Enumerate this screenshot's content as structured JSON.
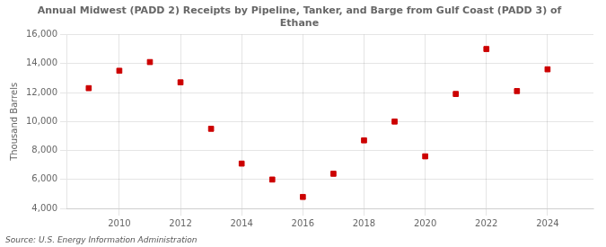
{
  "chart_data": {
    "type": "scatter",
    "title": "Annual Midwest (PADD 2) Receipts by Pipeline, Tanker, and Barge from Gulf Coast (PADD 3) of\nEthane",
    "ylabel": "Thousand Barrels",
    "annotations": [
      "Source: U.S. Energy Information Administration"
    ],
    "x": [
      2009,
      2010,
      2011,
      2012,
      2013,
      2014,
      2015,
      2016,
      2017,
      2018,
      2019,
      2020,
      2021,
      2022,
      2023,
      2024
    ],
    "values": [
      12300,
      13500,
      14100,
      12700,
      9500,
      7100,
      6000,
      4800,
      6400,
      8700,
      10000,
      7600,
      11900,
      15000,
      12100,
      13600
    ],
    "color": "#cc0000",
    "marker": "square",
    "xlim": [
      2008.3,
      2025.5
    ],
    "xticks": [
      2010,
      2012,
      2014,
      2016,
      2018,
      2020,
      2022,
      2024
    ],
    "ylim": [
      4000,
      16000
    ],
    "yticks": [
      {
        "value": 4000,
        "label": "4,000"
      },
      {
        "value": 6000,
        "label": "6,000"
      },
      {
        "value": 8000,
        "label": "8,000"
      },
      {
        "value": 10000,
        "label": "10,000"
      },
      {
        "value": 12000,
        "label": "12,000"
      },
      {
        "value": 14000,
        "label": "14,000"
      },
      {
        "value": 16000,
        "label": "16,000"
      }
    ],
    "grid": true
  }
}
